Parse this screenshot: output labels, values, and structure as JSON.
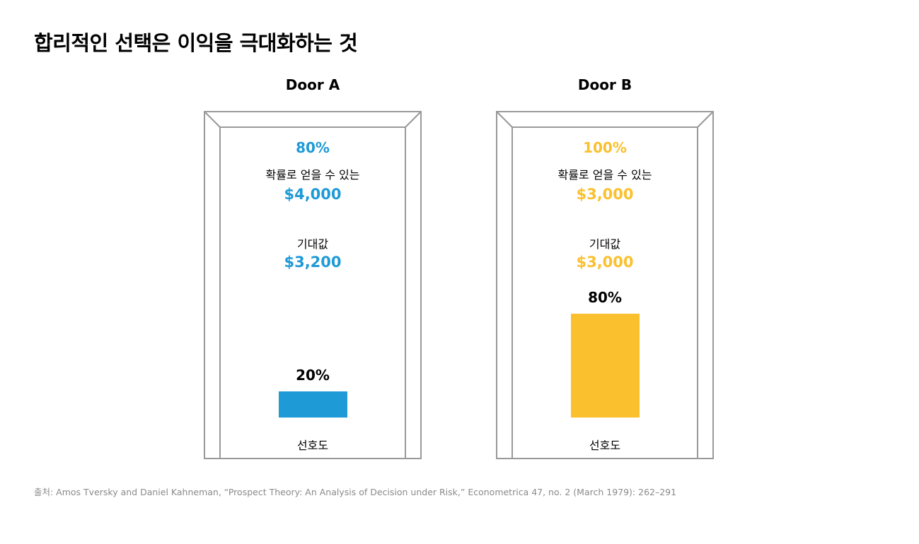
{
  "title": "합리적인 선택은 이익을 극대화하는 것",
  "source": "출처: Amos Tversky and Daniel Kahneman, “Prospect Theory: An Analysis of Decision under Risk,” Econometrica 47, no. 2 (March 1979): 262–291",
  "colors": {
    "door_a": "#1e9ad6",
    "door_b": "#fbc02d",
    "frame": "#999999"
  },
  "doors": [
    {
      "label": "Door A",
      "probability": "80%",
      "gain_caption": "확률로 얻을 수 있는",
      "gain": "$4,000",
      "expected_caption": "기대값",
      "expected": "$3,200",
      "preference_label": "20%",
      "preference_caption": "선호도"
    },
    {
      "label": "Door B",
      "probability": "100%",
      "gain_caption": "확률로 얻을 수 있는",
      "gain": "$3,000",
      "expected_caption": "기대값",
      "expected": "$3,000",
      "preference_label": "80%",
      "preference_caption": "선호도"
    }
  ],
  "chart_data": {
    "type": "bar",
    "categories": [
      "Door A",
      "Door B"
    ],
    "values": [
      20,
      80
    ],
    "data_labels": [
      "20%",
      "80%"
    ],
    "xlabel": "",
    "ylabel": "",
    "ylim": [
      0,
      100
    ]
  }
}
